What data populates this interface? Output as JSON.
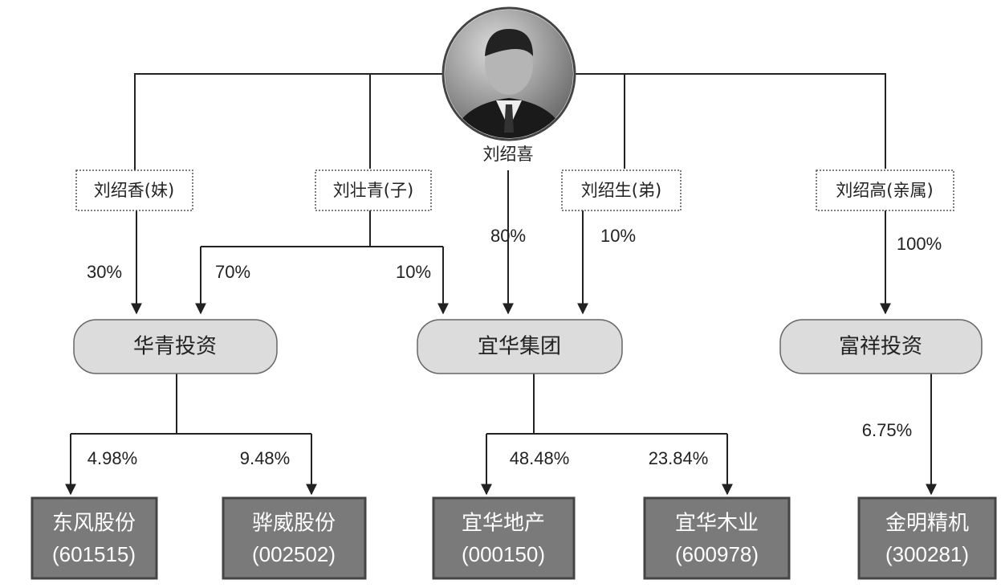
{
  "root": {
    "name": "刘绍喜"
  },
  "holders": [
    "刘绍香(妹)",
    "刘壮青(子)",
    "刘绍生(弟)",
    "刘绍高(亲属)"
  ],
  "stakes": [
    "30%",
    "70%",
    "10%",
    "80%",
    "10%",
    "100%"
  ],
  "companies": [
    "华青投资",
    "宜华集团",
    "富祥投资"
  ],
  "listed_stakes": [
    "4.98%",
    "9.48%",
    "48.48%",
    "23.84%",
    "6.75%"
  ],
  "listed": [
    {
      "name": "东风股份",
      "code": "(601515)"
    },
    {
      "name": "骅威股份",
      "code": "(002502)"
    },
    {
      "name": "宜华地产",
      "code": "(000150)"
    },
    {
      "name": "宜华木业",
      "code": "(600978)"
    },
    {
      "name": "金明精机",
      "code": "(300281)"
    }
  ]
}
